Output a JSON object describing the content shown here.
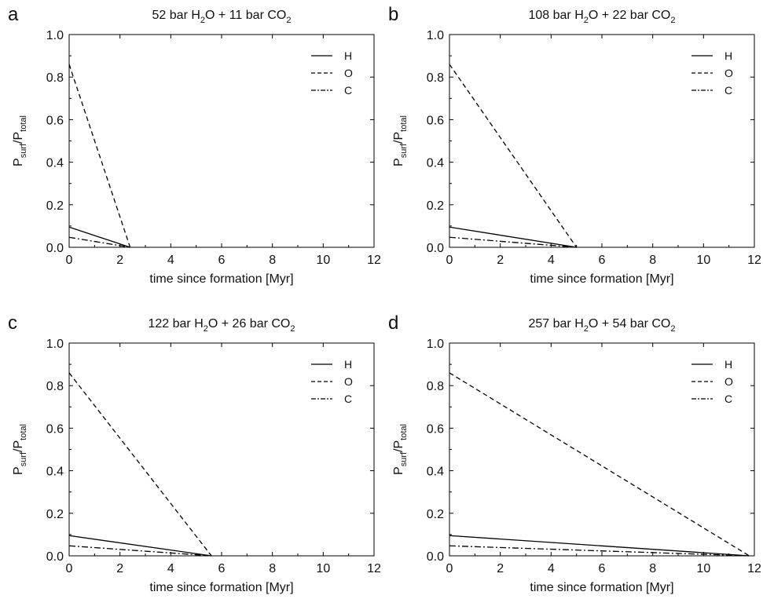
{
  "chart_data": [
    {
      "type": "line",
      "panel_label": "a",
      "title": {
        "pre": "52 bar H",
        "sub1": "2",
        "mid": "O + 11 bar CO",
        "sub2": "2"
      },
      "xlabel": "time since formation [Myr]",
      "ylabel": {
        "main1": "P",
        "sub1": "surf",
        "main2": "/P",
        "sub2": "total"
      },
      "xlim": [
        0,
        12
      ],
      "ylim": [
        0,
        1.0
      ],
      "xticks": [
        "0",
        "2",
        "4",
        "6",
        "8",
        "10",
        "12"
      ],
      "yticks": [
        "0.0",
        "0.2",
        "0.4",
        "0.6",
        "0.8",
        "1.0"
      ],
      "legend_position": "top-right",
      "series": [
        {
          "name": "H",
          "style": "solid",
          "x": [
            0,
            2.4
          ],
          "y": [
            0.095,
            0.0
          ]
        },
        {
          "name": "O",
          "style": "dashed",
          "x": [
            0,
            2.4
          ],
          "y": [
            0.86,
            0.0
          ]
        },
        {
          "name": "C",
          "style": "dashdot",
          "x": [
            0,
            2.4
          ],
          "y": [
            0.047,
            0.0
          ]
        }
      ]
    },
    {
      "type": "line",
      "panel_label": "b",
      "title": {
        "pre": "108 bar H",
        "sub1": "2",
        "mid": "O + 22 bar CO",
        "sub2": "2"
      },
      "xlabel": "time since formation [Myr]",
      "ylabel": {
        "main1": "P",
        "sub1": "surf",
        "main2": "/P",
        "sub2": "total"
      },
      "xlim": [
        0,
        12
      ],
      "ylim": [
        0,
        1.0
      ],
      "xticks": [
        "0",
        "2",
        "4",
        "6",
        "8",
        "10",
        "12"
      ],
      "yticks": [
        "0.0",
        "0.2",
        "0.4",
        "0.6",
        "0.8",
        "1.0"
      ],
      "legend_position": "top-right",
      "series": [
        {
          "name": "H",
          "style": "solid",
          "x": [
            0,
            5.0
          ],
          "y": [
            0.095,
            0.0
          ]
        },
        {
          "name": "O",
          "style": "dashed",
          "x": [
            0,
            5.0
          ],
          "y": [
            0.86,
            0.0
          ]
        },
        {
          "name": "C",
          "style": "dashdot",
          "x": [
            0,
            5.0
          ],
          "y": [
            0.047,
            0.0
          ]
        }
      ]
    },
    {
      "type": "line",
      "panel_label": "c",
      "title": {
        "pre": "122 bar H",
        "sub1": "2",
        "mid": "O + 26 bar CO",
        "sub2": "2"
      },
      "xlabel": "time since formation [Myr]",
      "ylabel": {
        "main1": "P",
        "sub1": "surf",
        "main2": "/P",
        "sub2": "total"
      },
      "xlim": [
        0,
        12
      ],
      "ylim": [
        0,
        1.0
      ],
      "xticks": [
        "0",
        "2",
        "4",
        "6",
        "8",
        "10",
        "12"
      ],
      "yticks": [
        "0.0",
        "0.2",
        "0.4",
        "0.6",
        "0.8",
        "1.0"
      ],
      "legend_position": "top-right",
      "series": [
        {
          "name": "H",
          "style": "solid",
          "x": [
            0,
            5.6
          ],
          "y": [
            0.095,
            0.0
          ]
        },
        {
          "name": "O",
          "style": "dashed",
          "x": [
            0,
            5.6
          ],
          "y": [
            0.86,
            0.0
          ]
        },
        {
          "name": "C",
          "style": "dashdot",
          "x": [
            0,
            5.6
          ],
          "y": [
            0.047,
            0.0
          ]
        }
      ]
    },
    {
      "type": "line",
      "panel_label": "d",
      "title": {
        "pre": "257 bar H",
        "sub1": "2",
        "mid": "O + 54 bar CO",
        "sub2": "2"
      },
      "xlabel": "time since formation [Myr]",
      "ylabel": {
        "main1": "P",
        "sub1": "surf",
        "main2": "/P",
        "sub2": "total"
      },
      "xlim": [
        0,
        12
      ],
      "ylim": [
        0,
        1.0
      ],
      "xticks": [
        "0",
        "2",
        "4",
        "6",
        "8",
        "10",
        "12"
      ],
      "yticks": [
        "0.0",
        "0.2",
        "0.4",
        "0.6",
        "0.8",
        "1.0"
      ],
      "legend_position": "top-right",
      "series": [
        {
          "name": "H",
          "style": "solid",
          "x": [
            0,
            11.8
          ],
          "y": [
            0.095,
            0.0
          ]
        },
        {
          "name": "O",
          "style": "dashed",
          "x": [
            0,
            11.8
          ],
          "y": [
            0.86,
            0.0
          ]
        },
        {
          "name": "C",
          "style": "dashdot",
          "x": [
            0,
            11.8
          ],
          "y": [
            0.047,
            0.0
          ]
        }
      ]
    }
  ]
}
